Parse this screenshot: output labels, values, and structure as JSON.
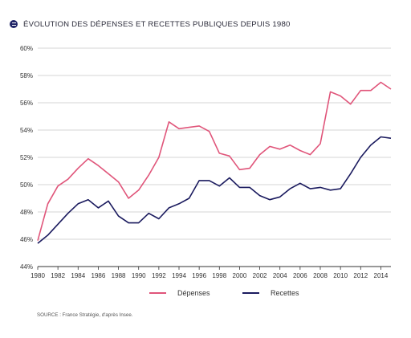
{
  "title": "ÉVOLUTION DES DÉPENSES ET RECETTES PUBLIQUES DEPUIS 1980",
  "source": "SOURCE : France Stratégie, d'après Insee.",
  "colors": {
    "depenses": "#e0557a",
    "recettes": "#1a1a5e",
    "grid": "#c9c9c9",
    "title_icon": "#1f2468"
  },
  "chart_data": {
    "type": "line",
    "title": "ÉVOLUTION DES DÉPENSES ET RECETTES PUBLIQUES DEPUIS 1980",
    "xlim": [
      1980,
      2015
    ],
    "ylim": [
      44,
      60
    ],
    "x_ticks": [
      1980,
      1982,
      1984,
      1986,
      1988,
      1990,
      1992,
      1994,
      1996,
      1998,
      2000,
      2002,
      2004,
      2006,
      2008,
      2010,
      2012,
      2014
    ],
    "y_ticks": [
      44,
      46,
      48,
      50,
      52,
      54,
      56,
      58,
      60
    ],
    "y_tick_labels": [
      "44%",
      "46%",
      "48%",
      "50%",
      "52%",
      "54%",
      "56%",
      "58%",
      "60%"
    ],
    "grid": "horizontal",
    "legend_position": "bottom",
    "x": [
      1980,
      1981,
      1982,
      1983,
      1984,
      1985,
      1986,
      1987,
      1988,
      1989,
      1990,
      1991,
      1992,
      1993,
      1994,
      1995,
      1996,
      1997,
      1998,
      1999,
      2000,
      2001,
      2002,
      2003,
      2004,
      2005,
      2006,
      2007,
      2008,
      2009,
      2010,
      2011,
      2012,
      2013,
      2014,
      2015
    ],
    "series": [
      {
        "name": "Dépenses",
        "color": "#e0557a",
        "values": [
          45.9,
          48.6,
          49.9,
          50.4,
          51.2,
          51.9,
          51.4,
          50.8,
          50.2,
          49.0,
          49.6,
          50.7,
          52.0,
          54.6,
          54.1,
          54.2,
          54.3,
          53.9,
          52.3,
          52.1,
          51.1,
          51.2,
          52.2,
          52.8,
          52.6,
          52.9,
          52.5,
          52.2,
          53.0,
          56.8,
          56.5,
          55.9,
          56.9,
          56.9,
          57.5,
          57.0
        ]
      },
      {
        "name": "Recettes",
        "color": "#1a1a5e",
        "values": [
          45.7,
          46.3,
          47.1,
          47.9,
          48.6,
          48.9,
          48.3,
          48.8,
          47.7,
          47.2,
          47.2,
          47.9,
          47.5,
          48.3,
          48.6,
          49.0,
          50.3,
          50.3,
          49.9,
          50.5,
          49.8,
          49.8,
          49.2,
          48.9,
          49.1,
          49.7,
          50.1,
          49.7,
          49.8,
          49.6,
          49.7,
          50.8,
          52.0,
          52.9,
          53.5,
          53.4
        ]
      }
    ]
  }
}
